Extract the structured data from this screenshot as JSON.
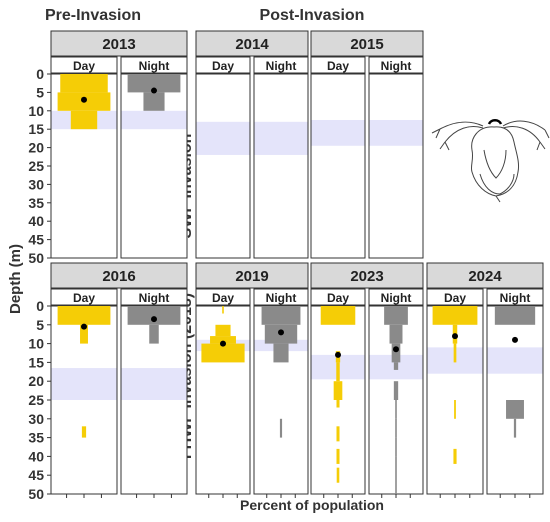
{
  "headers": {
    "left": "Pre-Invasion",
    "right": "Post-Invasion"
  },
  "y_axis_label": "Depth (m)",
  "x_axis_label": "Percent of population",
  "row_labels": [
    "SWF Invasion",
    "FHWF Invasion (2018)"
  ],
  "colors": {
    "day": "#f5cd06",
    "night": "#8a8a8a",
    "band": "#e4e4fa",
    "strip": "#d9d9d9",
    "point": "#000000"
  },
  "chart_data": {
    "type": "bar",
    "ylim": [
      0,
      50
    ],
    "y_ticks": [
      0,
      5,
      10,
      15,
      20,
      25,
      30,
      35,
      40,
      45,
      50
    ],
    "x_ticks_shown": false,
    "grid": false,
    "panels": [
      {
        "year": "2013",
        "band": [
          10,
          15
        ],
        "day": {
          "profile": [
            [
              0,
              5,
              0.9
            ],
            [
              5,
              10,
              1.0
            ],
            [
              10,
              15,
              0.5
            ]
          ],
          "mean": 7
        },
        "night": {
          "profile": [
            [
              0,
              5,
              1.0
            ],
            [
              5,
              10,
              0.4
            ]
          ],
          "mean": 4.5
        }
      },
      {
        "year": "2014",
        "band": [
          13,
          22
        ],
        "day": null,
        "night": null
      },
      {
        "year": "2015",
        "band": [
          12.5,
          19.5
        ],
        "day": null,
        "night": null
      },
      {
        "year": "2016",
        "band": [
          16.5,
          25
        ],
        "day": {
          "profile": [
            [
              0,
              5,
              1.0
            ],
            [
              5,
              10,
              0.15
            ],
            [
              32,
              35,
              0.08
            ]
          ],
          "mean": 5.5
        },
        "night": {
          "profile": [
            [
              0,
              5,
              1.0
            ],
            [
              5,
              10,
              0.18
            ]
          ],
          "mean": 3.5
        }
      },
      {
        "year": "2019",
        "band": [
          9,
          12
        ],
        "day": {
          "profile": [
            [
              0,
              2,
              0.02
            ],
            [
              5,
              8,
              0.35
            ],
            [
              8,
              10,
              0.6
            ],
            [
              10,
              15,
              1.0
            ]
          ],
          "mean": 10
        },
        "night": {
          "profile": [
            [
              0,
              5,
              0.9
            ],
            [
              5,
              10,
              0.75
            ],
            [
              10,
              15,
              0.35
            ],
            [
              30,
              35,
              0.05
            ]
          ],
          "mean": 7
        }
      },
      {
        "year": "2023",
        "band": [
          13,
          19.5
        ],
        "day": {
          "profile": [
            [
              0,
              5,
              0.8
            ],
            [
              12,
              15,
              0.1
            ],
            [
              15,
              20,
              0.08
            ],
            [
              20,
              25,
              0.2
            ],
            [
              25,
              27,
              0.07
            ],
            [
              32,
              36,
              0.07
            ],
            [
              38,
              42,
              0.07
            ],
            [
              43,
              47,
              0.06
            ]
          ],
          "mean": 13
        },
        "night": {
          "profile": [
            [
              0,
              5,
              0.55
            ],
            [
              5,
              10,
              0.3
            ],
            [
              10,
              15,
              0.2
            ],
            [
              15,
              17,
              0.1
            ],
            [
              20,
              25,
              0.1
            ],
            [
              25,
              30,
              0.02
            ],
            [
              30,
              35,
              0.02
            ],
            [
              35,
              40,
              0.02
            ],
            [
              40,
              50,
              0.02
            ]
          ],
          "mean": 11.5
        }
      },
      {
        "year": "2024",
        "band": [
          11,
          18
        ],
        "day": {
          "profile": [
            [
              0,
              5,
              1.0
            ],
            [
              5,
              10,
              0.1
            ],
            [
              10,
              15,
              0.06
            ],
            [
              25,
              30,
              0.04
            ],
            [
              38,
              42,
              0.07
            ]
          ],
          "mean": 8
        },
        "night": {
          "profile": [
            [
              0,
              5,
              0.9
            ],
            [
              25,
              30,
              0.4
            ],
            [
              30,
              35,
              0.05
            ]
          ],
          "mean": 9
        }
      }
    ],
    "sub_strip_labels": [
      "Day",
      "Night"
    ]
  }
}
